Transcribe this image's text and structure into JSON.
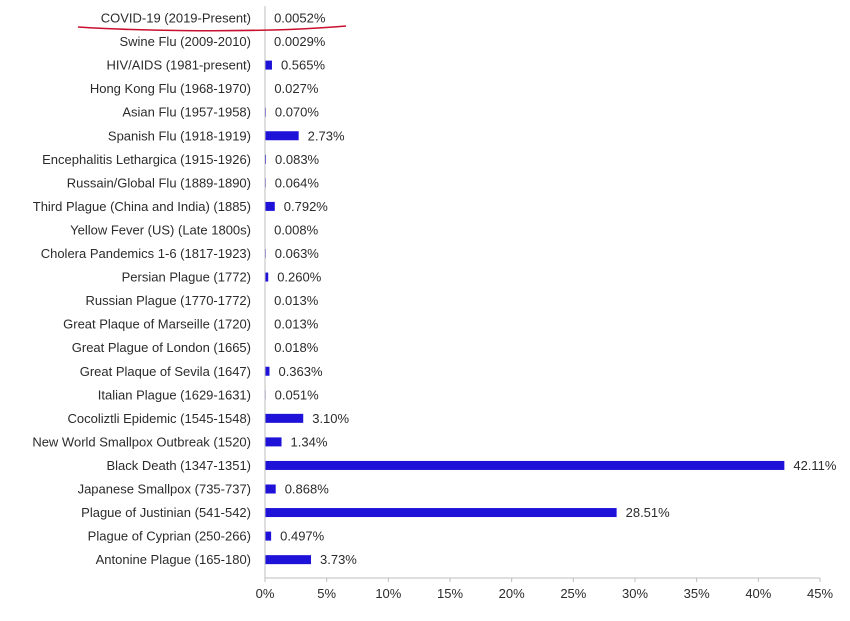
{
  "chart_data": {
    "type": "bar",
    "orientation": "horizontal",
    "categories": [
      "COVID-19 (2019-Present)",
      "Swine Flu (2009-2010)",
      "HIV/AIDS (1981-present)",
      "Hong Kong Flu (1968-1970)",
      "Asian Flu (1957-1958)",
      "Spanish Flu (1918-1919)",
      "Encephalitis Lethargica  (1915-1926)",
      "Russain/Global Flu  (1889-1890)",
      "Third Plague (China and India) (1885)",
      "Yellow Fever (US) (Late 1800s)",
      "Cholera Pandemics 1-6 (1817-1923)",
      "Persian Plague (1772)",
      "Russian Plague (1770-1772)",
      "Great Plaque of Marseille (1720)",
      "Great Plague of London (1665)",
      "Great Plaque of Sevila (1647)",
      "Italian Plague (1629-1631)",
      "Cocoliztli Epidemic (1545-1548)",
      "New World Smallpox Outbreak (1520)",
      "Black Death (1347-1351)",
      "Japanese Smallpox (735-737)",
      "Plague of Justinian (541-542)",
      "Plague of Cyprian (250-266)",
      "Antonine Plague (165-180)"
    ],
    "values": [
      0.0052,
      0.0029,
      0.565,
      0.027,
      0.07,
      2.73,
      0.083,
      0.064,
      0.792,
      0.008,
      0.063,
      0.26,
      0.013,
      0.013,
      0.018,
      0.363,
      0.051,
      3.1,
      1.34,
      42.11,
      0.868,
      28.51,
      0.497,
      3.73
    ],
    "value_labels": [
      "0.0052%",
      "0.0029%",
      "0.565%",
      "0.027%",
      "0.070%",
      "2.73%",
      "0.083%",
      "0.064%",
      "0.792%",
      "0.008%",
      "0.063%",
      "0.260%",
      "0.013%",
      "0.013%",
      "0.018%",
      "0.363%",
      "0.051%",
      "3.10%",
      "1.34%",
      "42.11%",
      "0.868%",
      "28.51%",
      "0.497%",
      "3.73%"
    ],
    "x_ticks": [
      0,
      5,
      10,
      15,
      20,
      25,
      30,
      35,
      40,
      45
    ],
    "x_tick_labels": [
      "0%",
      "5%",
      "10%",
      "15%",
      "20%",
      "25%",
      "30%",
      "35%",
      "40%",
      "45%"
    ],
    "xlim": [
      0,
      45
    ],
    "grid": false,
    "legend": "none",
    "highlighted_category": "COVID-19 (2019-Present)",
    "colors": {
      "bar": "#1e12d8",
      "highlight_underline": "#c8102e",
      "axis": "#bdbdbd",
      "text": "#2b2b2b"
    }
  }
}
